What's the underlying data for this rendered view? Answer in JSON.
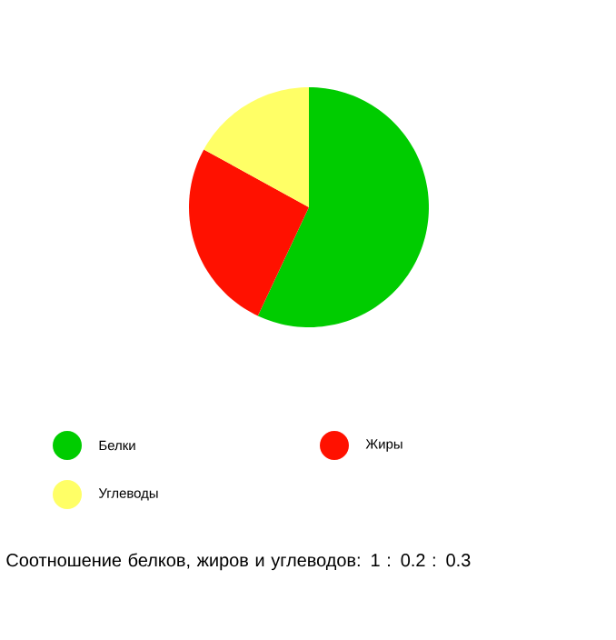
{
  "chart_data": {
    "type": "pie",
    "categories": [
      "Белки",
      "Жиры",
      "Углеводы"
    ],
    "values": [
      57,
      26,
      17
    ],
    "colors": [
      "#00cc00",
      "#ff1100",
      "#ffff66"
    ],
    "legend": "bottom",
    "annotations": [
      "Соотношение белков, жиров и углеводов: 1 : 0.2 : 0.3"
    ]
  }
}
